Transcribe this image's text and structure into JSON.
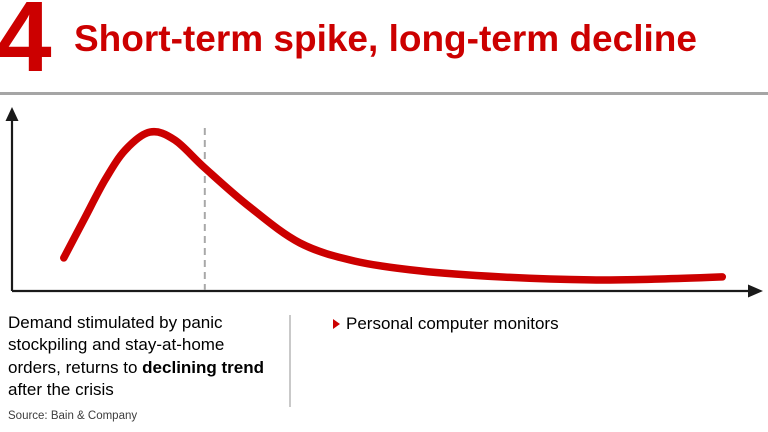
{
  "slide": {
    "number": "4",
    "title": "Short-term spike, long-term decline",
    "source": "Source: Bain & Company"
  },
  "notes": {
    "left_pre": "Demand stimulated by panic stockpiling and stay-at-home orders, returns to ",
    "left_bold": "declining trend",
    "left_post": " after the crisis"
  },
  "legend": {
    "bullet_icon": "red-right-triangle",
    "bullet_label": "Personal computer monitors"
  },
  "colors": {
    "accent_red": "#cc0000",
    "axis_black": "#1a1a1a",
    "dashed_gray": "#a8a8a8",
    "header_rule_gray": "#a5a5a5",
    "divider_gray": "#c9c9c9",
    "source_gray": "#3d3d3d"
  },
  "chart_data": {
    "type": "line",
    "title": "Stylized demand curve: short-term spike, long-term decline",
    "xlabel": "",
    "ylabel": "",
    "grid": false,
    "legend_position": "none",
    "axes_style": "unlabeled arrows, no ticks",
    "xlim": [
      0,
      100
    ],
    "ylim": [
      0,
      100
    ],
    "series": [
      {
        "name": "Personal computer monitors demand",
        "x": [
          6.9,
          9.7,
          12.4,
          15.1,
          18.4,
          21.7,
          25.7,
          31.7,
          38.4,
          45.7,
          54.4,
          65.1,
          77.1,
          86.4,
          94.7
        ],
        "y": [
          18.8,
          41.5,
          63.1,
          80.1,
          90.3,
          85.8,
          69.9,
          47.7,
          27.3,
          17.0,
          11.4,
          8.0,
          6.3,
          6.8,
          8.0
        ]
      }
    ],
    "annotations": {
      "dashed_vline_x": 25.7,
      "dashed_vline_meaning": "end of panic-buying crisis period"
    }
  }
}
